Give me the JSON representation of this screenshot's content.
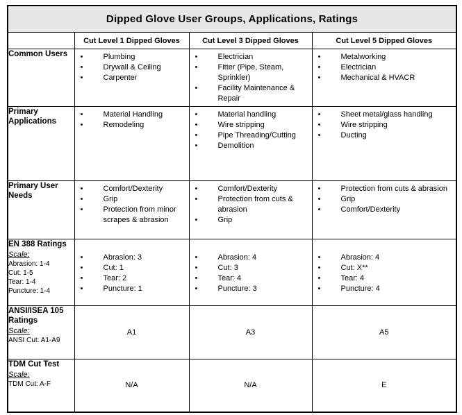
{
  "title": "Dipped Glove User Groups, Applications, Ratings",
  "columns": [
    "Cut Level 1 Dipped Gloves",
    "Cut Level 3 Dipped Gloves",
    "Cut Level 5 Dipped Gloves"
  ],
  "rows": [
    {
      "header": "Common Users",
      "scale": null,
      "cells": [
        {
          "kind": "bullets",
          "items": [
            "Plumbing",
            "Drywall & Ceiling",
            "Carpenter"
          ]
        },
        {
          "kind": "bullets",
          "items": [
            "Electrician",
            "Fitter (Pipe, Steam, Sprinkler)",
            "Facility Maintenance & Repair"
          ]
        },
        {
          "kind": "bullets",
          "items": [
            "Metalworking",
            "Electrician",
            "Mechanical & HVACR"
          ]
        }
      ]
    },
    {
      "header": "Primary Applications",
      "scale": null,
      "cells": [
        {
          "kind": "bullets",
          "items": [
            "Material Handling",
            "Remodeling"
          ]
        },
        {
          "kind": "bullets",
          "items": [
            "Material handling",
            "Wire stripping",
            "Pipe Threading/Cutting",
            "Demolition"
          ]
        },
        {
          "kind": "bullets",
          "items": [
            "Sheet metal/glass handling",
            "Wire stripping",
            "Ducting"
          ]
        }
      ]
    },
    {
      "header": "Primary User Needs",
      "scale": null,
      "cells": [
        {
          "kind": "bullets",
          "items": [
            "Comfort/Dexterity",
            "Grip",
            "Protection from minor scrapes & abrasion"
          ]
        },
        {
          "kind": "bullets",
          "items": [
            "Comfort/Dexterity",
            "Protection from cuts & abrasion",
            "Grip"
          ]
        },
        {
          "kind": "bullets",
          "items": [
            "Protection from cuts & abrasion",
            "Grip",
            "Comfort/Dexterity"
          ]
        }
      ]
    },
    {
      "header": "EN 388 Ratings",
      "scale": {
        "label": "Scale:",
        "lines": [
          "Abrasion: 1-4",
          "Cut: 1-5",
          "Tear: 1-4",
          "Puncture: 1-4"
        ]
      },
      "cells": [
        {
          "kind": "bullets",
          "items": [
            "Abrasion: 3",
            "Cut: 1",
            "Tear: 2",
            "Puncture: 1"
          ]
        },
        {
          "kind": "bullets",
          "items": [
            "Abrasion: 4",
            "Cut: 3",
            "Tear: 4",
            "Puncture: 3"
          ]
        },
        {
          "kind": "bullets",
          "items": [
            "Abrasion: 4",
            "Cut: X**",
            "Tear: 4",
            "Puncture: 4"
          ]
        }
      ]
    },
    {
      "header": "ANSI/ISEA 105 Ratings",
      "scale": {
        "label": "Scale:",
        "lines": [
          "ANSI Cut: A1-A9"
        ]
      },
      "cells": [
        {
          "kind": "center",
          "value": "A1"
        },
        {
          "kind": "center",
          "value": "A3"
        },
        {
          "kind": "center",
          "value": "A5"
        }
      ]
    },
    {
      "header": "TDM Cut Test",
      "scale": {
        "label": "Scale:",
        "lines": [
          "TDM Cut: A-F"
        ]
      },
      "cells": [
        {
          "kind": "center",
          "value": "N/A"
        },
        {
          "kind": "center",
          "value": "N/A"
        },
        {
          "kind": "center",
          "value": "E"
        }
      ]
    }
  ]
}
